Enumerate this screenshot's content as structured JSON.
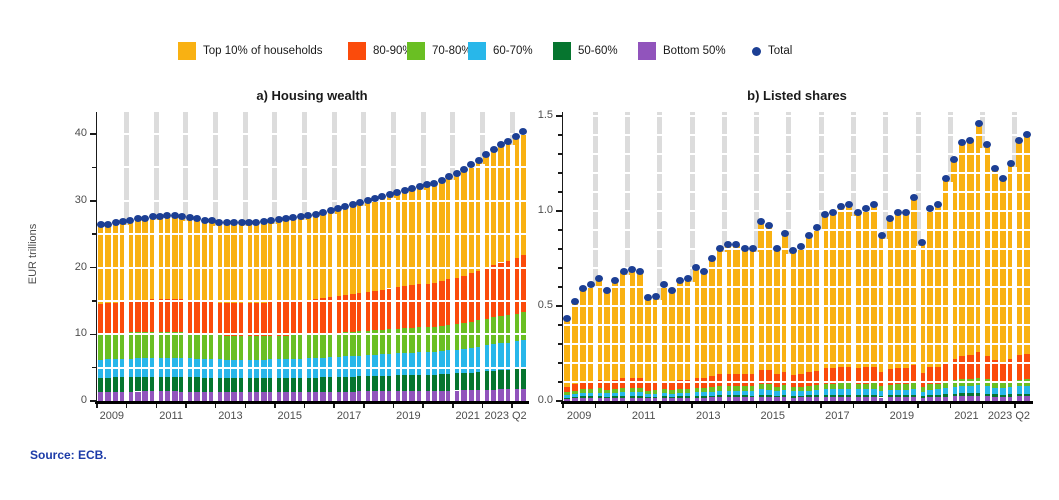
{
  "source_note": "Source: ECB.",
  "colors": {
    "top10": "#F9B112",
    "p80_90": "#FB4B0B",
    "p70_80": "#6ABF23",
    "p60_70": "#28B7EA",
    "p50_60": "#06752F",
    "bottom50": "#9154BC",
    "total_dot": "#1C3F94",
    "grid_gray": "#dcdcdc",
    "axis": "#1a1a1a",
    "tick_text": "#4d4d4d",
    "source_text": "#1C3BA8"
  },
  "legend": {
    "items": [
      {
        "label": "Top 10% of households",
        "color": "#F9B112",
        "type": "square"
      },
      {
        "label": "80-90%",
        "color": "#FB4B0B",
        "type": "square"
      },
      {
        "label": "70-80%",
        "color": "#6ABF23",
        "type": "square"
      },
      {
        "label": "60-70%",
        "color": "#28B7EA",
        "type": "square"
      },
      {
        "label": "50-60%",
        "color": "#06752F",
        "type": "square"
      },
      {
        "label": "Bottom 50%",
        "color": "#9154BC",
        "type": "square"
      },
      {
        "label": "Total",
        "color": "#1C3F94",
        "type": "dot"
      }
    ]
  },
  "chart_data": [
    {
      "type": "bar",
      "subtype": "stacked-quarterly-bars-with-total-dots",
      "title": "a) Housing wealth",
      "ylabel": "EUR trillions",
      "ylim": [
        0,
        43.3
      ],
      "ytick_labels": [
        "0",
        "10",
        "20",
        "30",
        "40"
      ],
      "yticks": [
        0,
        10,
        20,
        30,
        40
      ],
      "ytick_minor_interval": 5,
      "grid_y_interval": 5,
      "x_start": "2009 Q1",
      "x_end": "2023 Q2",
      "frequency": "quarterly",
      "xtick_labels": [
        "2009",
        "2011",
        "2013",
        "2015",
        "2017",
        "2019",
        "2021",
        "2023 Q2"
      ],
      "totals": [
        26.3,
        26.4,
        26.6,
        26.8,
        27.0,
        27.2,
        27.3,
        27.5,
        27.6,
        27.7,
        27.7,
        27.6,
        27.4,
        27.2,
        27.0,
        26.9,
        26.7,
        26.6,
        26.6,
        26.6,
        26.6,
        26.7,
        26.8,
        26.9,
        27.1,
        27.2,
        27.4,
        27.5,
        27.7,
        27.9,
        28.2,
        28.5,
        28.8,
        29.1,
        29.4,
        29.7,
        30.0,
        30.3,
        30.6,
        30.9,
        31.2,
        31.5,
        31.8,
        32.1,
        32.3,
        32.5,
        33.0,
        33.5,
        34.0,
        34.6,
        35.3,
        36.0,
        36.8,
        37.6,
        38.3,
        38.8,
        39.6,
        40.3
      ],
      "series_order_bottom_to_top": [
        "Bottom 50%",
        "50-60%",
        "60-70%",
        "70-80%",
        "80-90%",
        "Top 10% of households"
      ],
      "series_share_of_total": {
        "start": {
          "Bottom 50%": 0.053,
          "50-60%": 0.08,
          "60-70%": 0.103,
          "70-80%": 0.148,
          "80-90%": 0.171,
          "Top 10% of households": 0.445
        },
        "end": {
          "Bottom 50%": 0.045,
          "50-60%": 0.074,
          "60-70%": 0.106,
          "70-80%": 0.105,
          "80-90%": 0.211,
          "Top 10% of households": 0.459
        }
      }
    },
    {
      "type": "bar",
      "subtype": "stacked-quarterly-bars-with-total-dots",
      "title": "b) Listed shares",
      "ylabel": "",
      "ylim": [
        0,
        1.52
      ],
      "ytick_labels": [
        "0.0",
        "0.5",
        "1.0",
        "1.5"
      ],
      "yticks": [
        0,
        0.5,
        1.0,
        1.5
      ],
      "ytick_minor_interval": 0.1,
      "grid_y_interval": 0.1,
      "x_start": "2009 Q1",
      "x_end": "2023 Q2",
      "frequency": "quarterly",
      "xtick_labels": [
        "2009",
        "2011",
        "2013",
        "2015",
        "2017",
        "2019",
        "2021",
        "2023 Q2"
      ],
      "totals": [
        0.43,
        0.52,
        0.59,
        0.61,
        0.64,
        0.58,
        0.63,
        0.68,
        0.69,
        0.68,
        0.54,
        0.55,
        0.61,
        0.58,
        0.63,
        0.64,
        0.7,
        0.68,
        0.75,
        0.8,
        0.82,
        0.82,
        0.8,
        0.8,
        0.94,
        0.92,
        0.8,
        0.88,
        0.79,
        0.81,
        0.87,
        0.91,
        0.98,
        0.99,
        1.02,
        1.03,
        0.99,
        1.01,
        1.03,
        0.87,
        0.96,
        0.99,
        0.99,
        1.07,
        0.83,
        1.01,
        1.03,
        1.17,
        1.27,
        1.36,
        1.37,
        1.46,
        1.35,
        1.22,
        1.17,
        1.25,
        1.37,
        1.4
      ],
      "series_order_bottom_to_top": [
        "Bottom 50%",
        "50-60%",
        "60-70%",
        "70-80%",
        "80-90%",
        "Top 10% of households"
      ],
      "series_share_of_total": {
        "start": {
          "Bottom 50%": 0.028,
          "50-60%": 0.014,
          "60-70%": 0.028,
          "70-80%": 0.035,
          "80-90%": 0.07,
          "Top 10% of households": 0.825
        },
        "end": {
          "Bottom 50%": 0.018,
          "50-60%": 0.009,
          "60-70%": 0.03,
          "70-80%": 0.025,
          "80-90%": 0.093,
          "Top 10% of households": 0.825
        }
      }
    }
  ]
}
